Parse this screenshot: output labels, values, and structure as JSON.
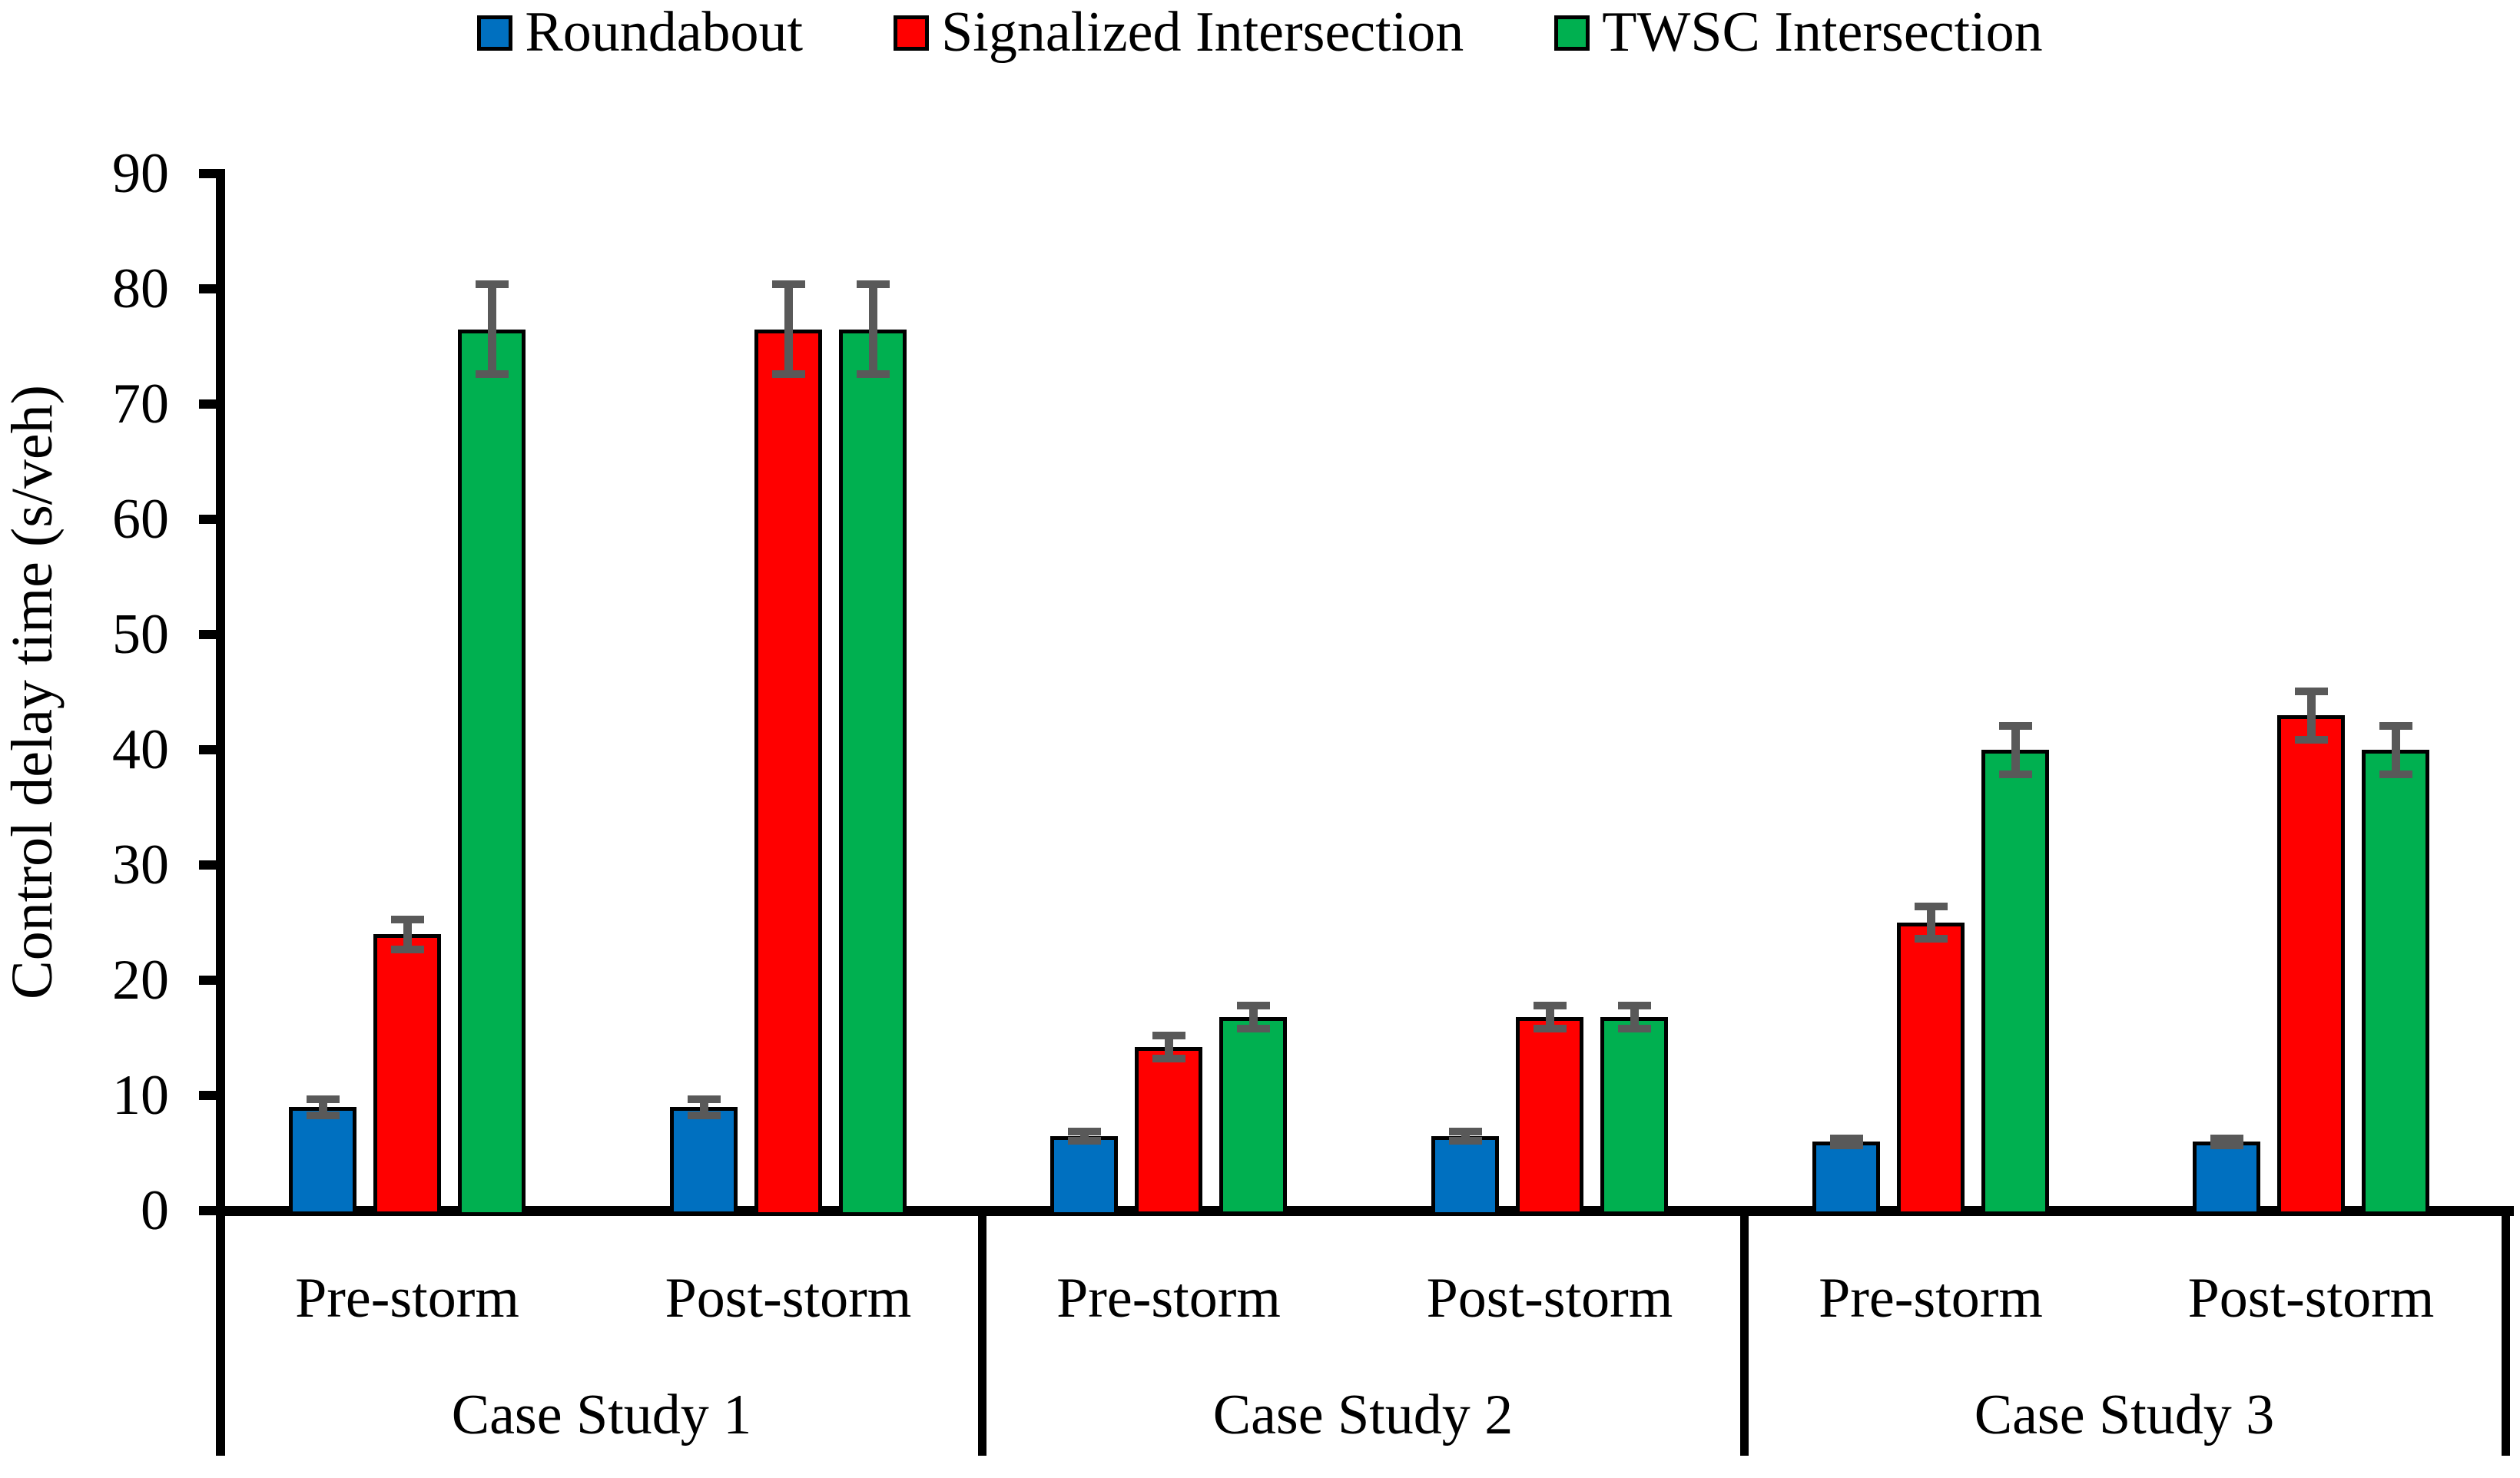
{
  "chart_data": {
    "type": "bar",
    "title": "",
    "ylabel": "Control delay time (s/veh)",
    "xlabel": "",
    "ylim": [
      0,
      90
    ],
    "ytick_step": 10,
    "yticks": [
      "0",
      "10",
      "20",
      "30",
      "40",
      "50",
      "60",
      "70",
      "80",
      "90"
    ],
    "grid": false,
    "legend_position": "top",
    "bar_outline_color": "#000000",
    "error_bar_color": "#595959",
    "axis_color": "#000000",
    "background_color": "#ffffff",
    "group_labels": [
      "Case Study 1",
      "Case Study 2",
      "Case Study 3"
    ],
    "subgroup_labels": [
      "Pre-storm",
      "Post-storm"
    ],
    "values_format": "values[group_index] = [pre_storm_value, post_storm_value]",
    "series": [
      {
        "name": "Roundabout",
        "color": "#0070C0",
        "values": [
          [
            9,
            9
          ],
          [
            6.5,
            6.5
          ],
          [
            6,
            6
          ]
        ],
        "errors": [
          [
            0.7,
            0.7
          ],
          [
            0.4,
            0.4
          ],
          [
            0.3,
            0.3
          ]
        ]
      },
      {
        "name": "Signalized Intersection",
        "color": "#FF0000",
        "values": [
          [
            24,
            76.5
          ],
          [
            14.2,
            16.8
          ],
          [
            25,
            43
          ]
        ],
        "errors": [
          [
            1.3,
            3.9
          ],
          [
            1.0,
            1.0
          ],
          [
            1.4,
            2.1
          ]
        ]
      },
      {
        "name": "TWSC Intersection",
        "color": "#00B050",
        "values": [
          [
            76.5,
            76.5
          ],
          [
            16.8,
            16.8
          ],
          [
            40,
            40
          ]
        ],
        "errors": [
          [
            3.9,
            3.9
          ],
          [
            1.0,
            1.0
          ],
          [
            2.1,
            2.1
          ]
        ]
      }
    ]
  }
}
